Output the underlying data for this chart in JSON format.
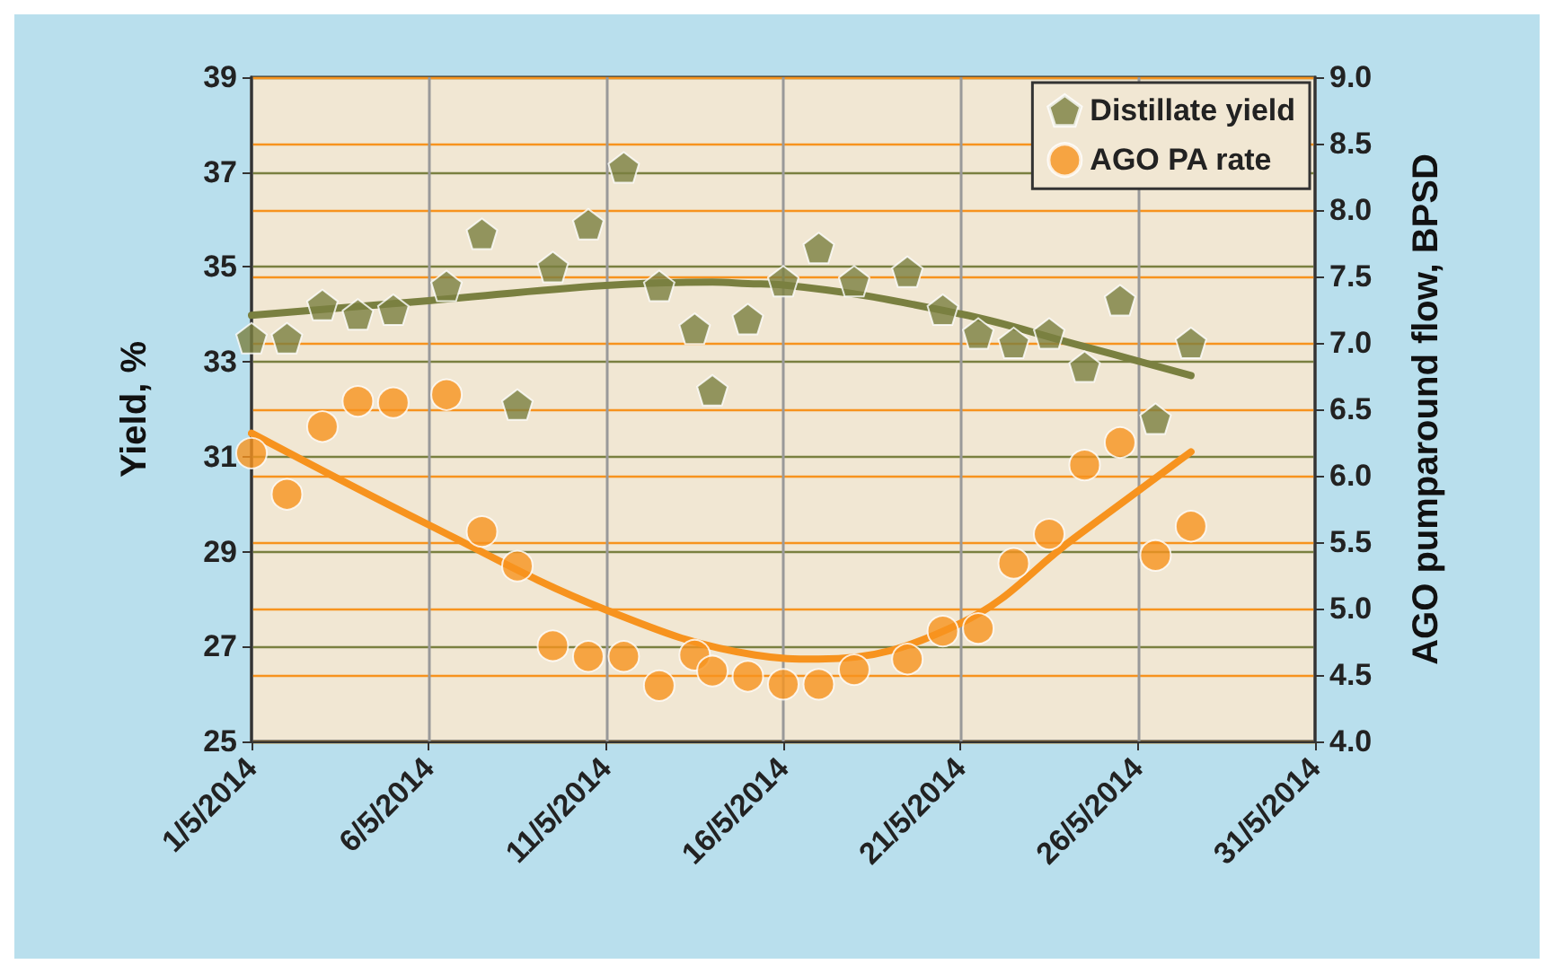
{
  "chart_data": {
    "type": "scatter",
    "ylabel": "Yield, %",
    "y2label": "AGO pumparound flow, BPSD",
    "xlim": [
      "2014-05-01",
      "2014-05-31"
    ],
    "xticks": [
      {
        "value": "2014-05-01",
        "label": "1/5/2014"
      },
      {
        "value": "2014-05-06",
        "label": "6/5/2014"
      },
      {
        "value": "2014-05-11",
        "label": "11/5/2014"
      },
      {
        "value": "2014-05-16",
        "label": "16/5/2014"
      },
      {
        "value": "2014-05-21",
        "label": "21/5/2014"
      },
      {
        "value": "2014-05-26",
        "label": "26/5/2014"
      },
      {
        "value": "2014-05-31",
        "label": "31/5/2014"
      }
    ],
    "ylim": [
      25,
      39
    ],
    "yticks": [
      25,
      27,
      29,
      31,
      33,
      35,
      37,
      39
    ],
    "y2lim": [
      4.0,
      9.0
    ],
    "y2ticks": [
      {
        "value": 4,
        "label": "4.0"
      },
      4.5,
      {
        "value": 5,
        "label": "5.0"
      },
      5.5,
      {
        "value": 6,
        "label": "6.0"
      },
      6.5,
      {
        "value": 7,
        "label": "7.0"
      },
      7.5,
      {
        "value": 8,
        "label": "8.0"
      },
      8.5,
      {
        "value": 9,
        "label": "9.0"
      }
    ],
    "grid": true,
    "legend": "top right",
    "series": [
      {
        "name": "Distillate yield",
        "color": "#7a8040",
        "x": [
          "2014-05-01",
          "2014-05-02",
          "2014-05-03",
          "2014-05-04",
          "2014-05-05",
          "2014-05-06T12:00",
          "2014-05-07T12:00",
          "2014-05-08T12:00",
          "2014-05-09T12:00",
          "2014-05-10T12:00",
          "2014-05-11T12:00",
          "2014-05-12T12:00",
          "2014-05-13T12:00",
          "2014-05-14",
          "2014-05-15",
          "2014-05-16",
          "2014-05-17",
          "2014-05-18",
          "2014-05-19T12:00",
          "2014-05-20T12:00",
          "2014-05-21T12:00",
          "2014-05-22T12:00",
          "2014-05-23T12:00",
          "2014-05-24T12:00",
          "2014-05-25T12:00",
          "2014-05-26T12:00",
          "2014-05-27T12:00"
        ],
        "values": [
          33.5,
          33.5,
          34.2,
          34.0,
          34.1,
          34.6,
          35.7,
          32.1,
          35.0,
          35.9,
          37.1,
          34.6,
          33.7,
          32.4,
          33.9,
          34.7,
          35.4,
          34.7,
          34.9,
          34.1,
          33.6,
          33.4,
          33.6,
          32.9,
          34.3,
          31.8,
          33.4
        ]
      },
      {
        "name": "AGO PA rate",
        "color": "#f7931e",
        "marker": "circle",
        "axis": "y2",
        "x": [
          "2014-05-01",
          "2014-05-02",
          "2014-05-03",
          "2014-05-04",
          "2014-05-05",
          "2014-05-06T12:00",
          "2014-05-07T12:00",
          "2014-05-08T12:00",
          "2014-05-09T12:00",
          "2014-05-10T12:00",
          "2014-05-11T12:00",
          "2014-05-12T12:00",
          "2014-05-13T12:00",
          "2014-05-14",
          "2014-05-15",
          "2014-05-16",
          "2014-05-17",
          "2014-05-18",
          "2014-05-19T12:00",
          "2014-05-20T12:00",
          "2014-05-21T12:00",
          "2014-05-22T12:00",
          "2014-05-23T12:00",
          "2014-05-24T12:00",
          "2014-05-25T12:00",
          "2014-05-26T12:00",
          "2014-05-27T12:00"
        ],
        "values": [
          6.17,
          5.86,
          6.37,
          6.56,
          6.55,
          6.61,
          5.58,
          5.32,
          4.72,
          4.64,
          4.64,
          4.42,
          4.65,
          4.53,
          4.49,
          4.43,
          4.43,
          4.54,
          4.62,
          4.83,
          4.85,
          5.34,
          5.56,
          6.08,
          6.25,
          5.4,
          5.62
        ]
      },
      {
        "type": "line",
        "color": "#7a8040",
        "marker": "none",
        "x": [
          "2014-05-01",
          "2014-05-06",
          "2014-05-11",
          "2014-05-14",
          "2014-05-15",
          "2014-05-16",
          "2014-05-21",
          "2014-05-24T05:00",
          "2014-05-27T12:00"
        ],
        "values": [
          33.98,
          34.29,
          34.61,
          34.68,
          34.65,
          34.62,
          34.01,
          33.38,
          32.71
        ]
      },
      {
        "type": "line",
        "color": "#f7931e",
        "marker": "none",
        "axis": "y2",
        "x": [
          "2014-05-01",
          "2014-05-06",
          "2014-05-11",
          "2014-05-15T05:00",
          "2014-05-17",
          "2014-05-21",
          "2014-05-24T05:00",
          "2014-05-27T12:00"
        ],
        "values": [
          6.32,
          5.63,
          4.99,
          4.65,
          4.62,
          4.89,
          5.53,
          6.18
        ]
      }
    ]
  }
}
